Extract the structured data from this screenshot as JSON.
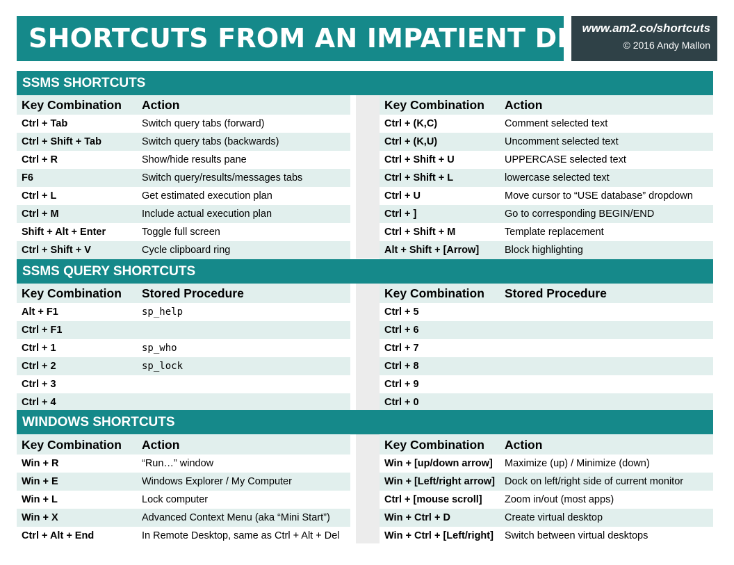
{
  "header": {
    "title": "SHORTCUTS FROM AN IMPATIENT DBA",
    "url": "www.am2.co/shortcuts",
    "copyright": "© 2016 Andy Mallon"
  },
  "colors": {
    "teal": "#15898a",
    "dark": "#2f4147",
    "row_alt": "#e1efed",
    "gutter": "#ececec"
  },
  "ssms": {
    "title": "SSMS SHORTCUTS",
    "col1": "Key Combination",
    "col2": "Action",
    "left": [
      {
        "key": "Ctrl + Tab",
        "action": "Switch query tabs (forward)"
      },
      {
        "key": "Ctrl + Shift + Tab",
        "action": "Switch query tabs (backwards)"
      },
      {
        "key": "Ctrl + R",
        "action": "Show/hide results pane"
      },
      {
        "key": "F6",
        "action": "Switch query/results/messages tabs"
      },
      {
        "key": "Ctrl + L",
        "action": "Get estimated execution plan"
      },
      {
        "key": "Ctrl + M",
        "action": "Include actual execution plan"
      },
      {
        "key": "Shift + Alt + Enter",
        "action": "Toggle full screen"
      },
      {
        "key": "Ctrl + Shift + V",
        "action": "Cycle clipboard ring"
      }
    ],
    "right": [
      {
        "key": "Ctrl + (K,C)",
        "action": "Comment selected text"
      },
      {
        "key": "Ctrl + (K,U)",
        "action": "Uncomment selected text"
      },
      {
        "key": "Ctrl + Shift + U",
        "action": "UPPERCASE selected text"
      },
      {
        "key": "Ctrl + Shift + L",
        "action": "lowercase selected text"
      },
      {
        "key": "Ctrl + U",
        "action": "Move cursor to “USE database” dropdown"
      },
      {
        "key": "Ctrl + ]",
        "action": "Go to corresponding BEGIN/END"
      },
      {
        "key": "Ctrl + Shift + M",
        "action": "Template replacement"
      },
      {
        "key": "Alt + Shift + [Arrow]",
        "action": "Block highlighting"
      }
    ]
  },
  "query": {
    "title": "SSMS QUERY SHORTCUTS",
    "col1": "Key Combination",
    "col2": "Stored Procedure",
    "left": [
      {
        "key": "Alt + F1",
        "action": "sp_help"
      },
      {
        "key": "Ctrl + F1",
        "action": ""
      },
      {
        "key": "Ctrl + 1",
        "action": "sp_who"
      },
      {
        "key": "Ctrl + 2",
        "action": "sp_lock"
      },
      {
        "key": "Ctrl + 3",
        "action": ""
      },
      {
        "key": "Ctrl + 4",
        "action": ""
      }
    ],
    "right": [
      {
        "key": "Ctrl + 5",
        "action": ""
      },
      {
        "key": "Ctrl + 6",
        "action": ""
      },
      {
        "key": "Ctrl + 7",
        "action": ""
      },
      {
        "key": "Ctrl + 8",
        "action": ""
      },
      {
        "key": "Ctrl + 9",
        "action": ""
      },
      {
        "key": "Ctrl + 0",
        "action": ""
      }
    ]
  },
  "windows": {
    "title": "WINDOWS SHORTCUTS",
    "col1": "Key Combination",
    "col2": "Action",
    "left": [
      {
        "key": "Win + R",
        "action": "“Run…” window"
      },
      {
        "key": "Win + E",
        "action": "Windows Explorer / My Computer"
      },
      {
        "key": "Win + L",
        "action": "Lock computer"
      },
      {
        "key": "Win + X",
        "action": "Advanced Context Menu (aka “Mini Start”)"
      },
      {
        "key": "Ctrl + Alt + End",
        "action": "In Remote Desktop, same as Ctrl + Alt + Del"
      }
    ],
    "right": [
      {
        "key": "Win + [up/down arrow]",
        "action": "Maximize (up) / Minimize (down)"
      },
      {
        "key": "Win + [Left/right arrow]",
        "action": "Dock on left/right side of current monitor"
      },
      {
        "key": "Ctrl + [mouse scroll]",
        "action": "Zoom in/out (most apps)"
      },
      {
        "key": "Win + Ctrl + D",
        "action": "Create virtual desktop"
      },
      {
        "key": "Win + Ctrl + [Left/right]",
        "action": "Switch between virtual desktops"
      }
    ]
  }
}
